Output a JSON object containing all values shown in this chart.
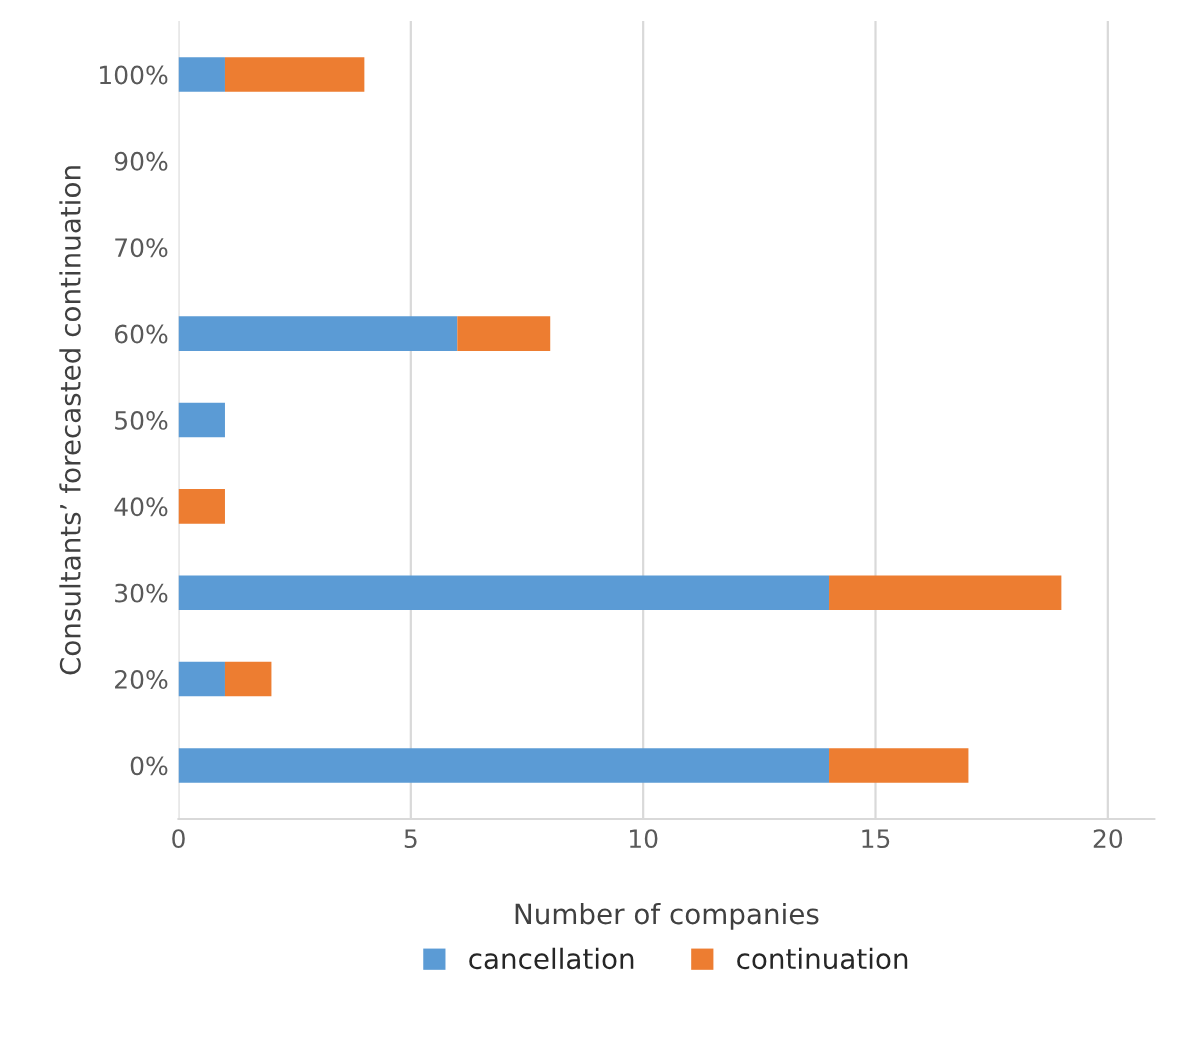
{
  "chart_data": {
    "type": "bar",
    "orientation": "horizontal",
    "stacked": true,
    "xlabel": "Number of companies",
    "ylabel": "Consultants’ forecasted continuation",
    "categories": [
      "100%",
      "90%",
      "70%",
      "60%",
      "50%",
      "40%",
      "30%",
      "20%",
      "0%"
    ],
    "series": [
      {
        "name": "cancellation",
        "color": "#5b9bd5",
        "values": [
          1,
          0,
          0,
          6,
          1,
          0,
          14,
          1,
          14
        ]
      },
      {
        "name": "continuation",
        "color": "#ed7d31",
        "values": [
          3,
          0,
          0,
          2,
          0,
          1,
          5,
          1,
          3
        ]
      }
    ],
    "xlim": [
      0,
      21
    ],
    "xticks": [
      0,
      5,
      10,
      15,
      20
    ],
    "grid": "x",
    "legend": "bottom"
  }
}
